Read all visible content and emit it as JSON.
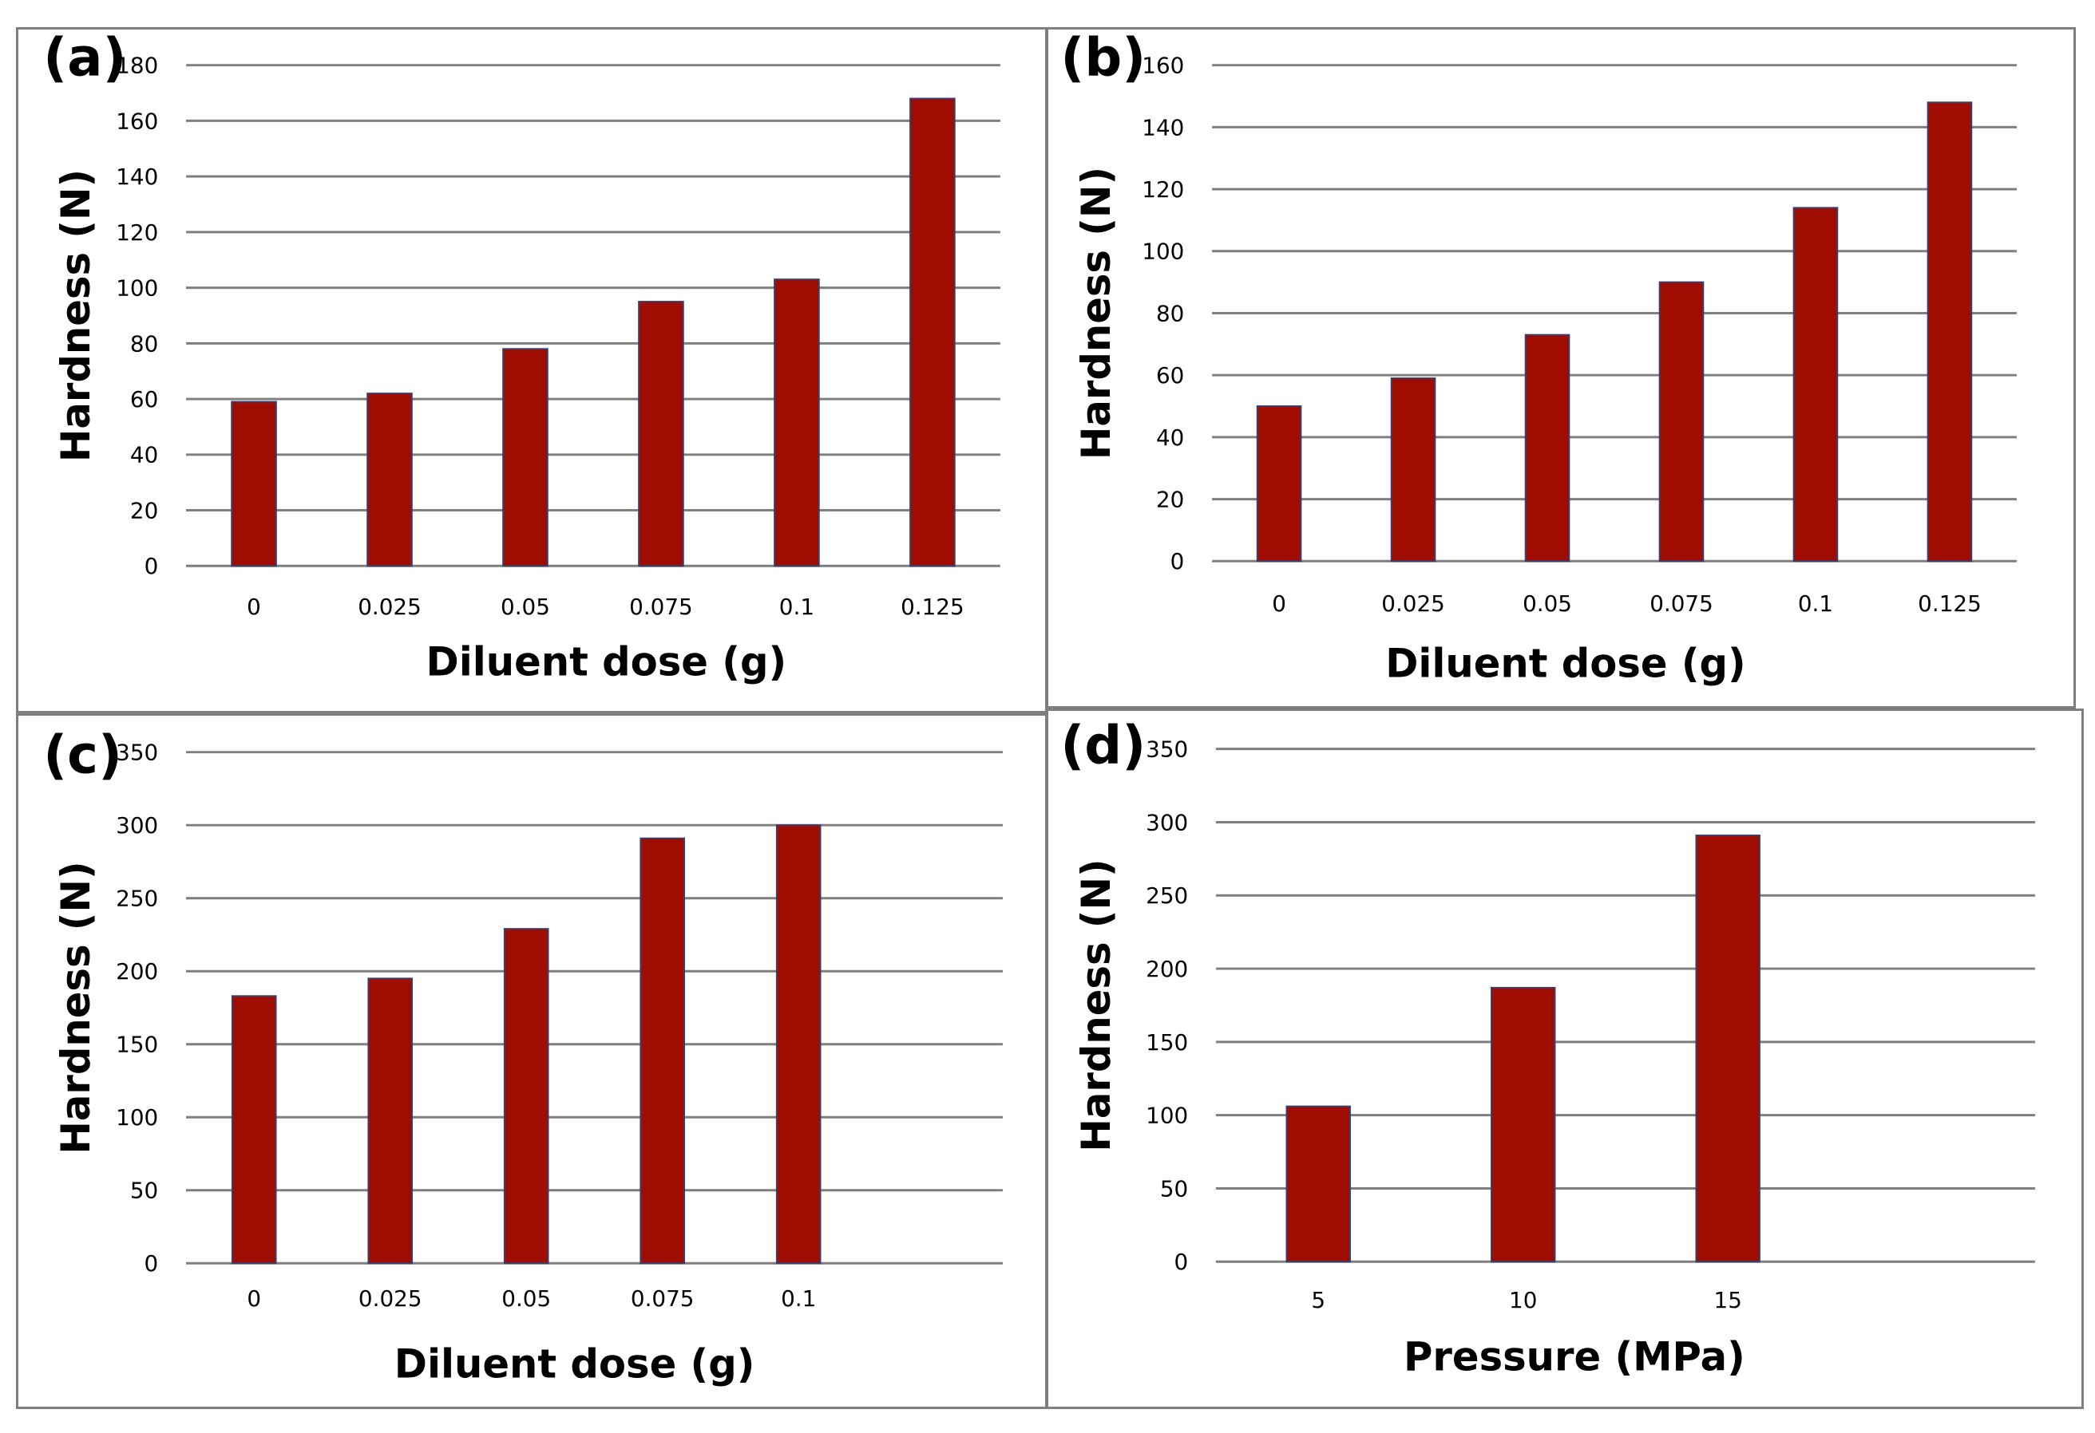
{
  "colors": {
    "bar": "#9e0d00",
    "grid": "#7f7f7f",
    "border": "#7f7f7f"
  },
  "chart_data": [
    {
      "panel_label": "(a)",
      "type": "bar",
      "xlabel": "Diluent dose (g)",
      "ylabel": "Hardness (N)",
      "categories": [
        "0",
        "0.025",
        "0.05",
        "0.075",
        "0.1",
        "0.125"
      ],
      "values": [
        59,
        62,
        78,
        95,
        103,
        168
      ],
      "ylim": [
        0,
        180
      ],
      "yticks": [
        0,
        20,
        40,
        60,
        80,
        100,
        120,
        140,
        160,
        180
      ],
      "grid": true
    },
    {
      "panel_label": "(b)",
      "type": "bar",
      "xlabel": "Diluent dose (g)",
      "ylabel": "Hardness (N)",
      "categories": [
        "0",
        "0.025",
        "0.05",
        "0.075",
        "0.1",
        "0.125"
      ],
      "values": [
        50,
        59,
        73,
        90,
        114,
        148
      ],
      "ylim": [
        0,
        160
      ],
      "yticks": [
        0,
        20,
        40,
        60,
        80,
        100,
        120,
        140,
        160
      ],
      "grid": true
    },
    {
      "panel_label": "(c)",
      "type": "bar",
      "xlabel": "Diluent dose (g)",
      "ylabel": "Hardness (N)",
      "categories": [
        "0",
        "0.025",
        "0.05",
        "0.075",
        "0.1"
      ],
      "values": [
        183,
        195,
        229,
        291,
        300
      ],
      "ylim": [
        0,
        350
      ],
      "yticks": [
        0,
        50,
        100,
        150,
        200,
        250,
        300,
        350
      ],
      "grid": true
    },
    {
      "panel_label": "(d)",
      "type": "bar",
      "xlabel": "Pressure (MPa)",
      "ylabel": "Hardness (N)",
      "categories": [
        "5",
        "10",
        "15"
      ],
      "values": [
        106,
        187,
        291
      ],
      "ylim": [
        0,
        350
      ],
      "yticks": [
        0,
        50,
        100,
        150,
        200,
        250,
        300,
        350
      ],
      "grid": true
    }
  ]
}
